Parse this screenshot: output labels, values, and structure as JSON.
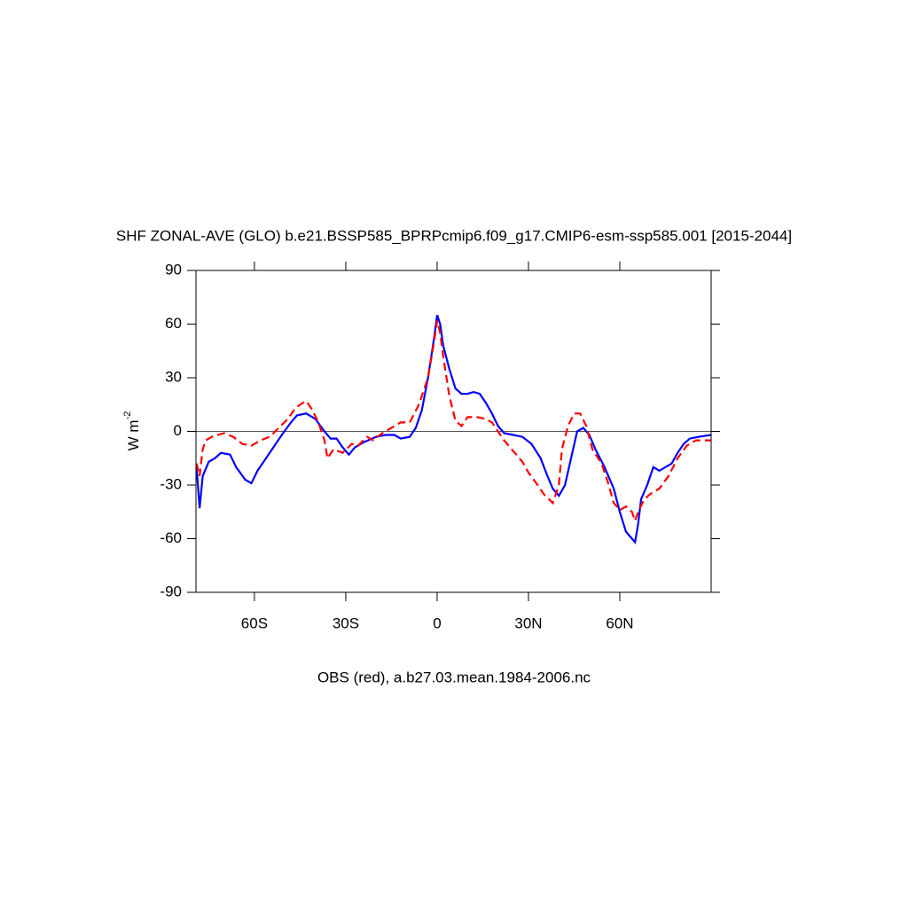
{
  "chart_data": {
    "type": "line",
    "title": "SHF ZONAL-AVE (GLO) b.e21.BSSP585_BPRPcmip6.f09_g17.CMIP6-esm-ssp585.001 [2015-2044]",
    "ylabel": "W m",
    "ylabel_superscript": "-2",
    "footer": "OBS (red), a.b27.03.mean.1984-2006.nc",
    "xlim": [
      -79.2,
      90
    ],
    "ylim": [
      -90,
      90
    ],
    "xticks": [
      {
        "value": -60,
        "label": "60S"
      },
      {
        "value": -30,
        "label": "30S"
      },
      0,
      {
        "value": 30,
        "label": "30N"
      },
      {
        "value": 60,
        "label": "60N"
      }
    ],
    "yticks": [
      -90,
      -60,
      -30,
      0,
      30,
      60,
      90
    ],
    "reference_line": 0,
    "series": [
      {
        "color": "#0000ff",
        "dash": false,
        "x": [
          -79,
          -78,
          -77,
          -75,
          -73,
          -71,
          -68,
          -66,
          -63,
          -61,
          -59,
          -55,
          -51,
          -48,
          -46,
          -43,
          -40,
          -37,
          -35,
          -33,
          -31,
          -29,
          -27,
          -24,
          -20,
          -17,
          -14,
          -12,
          -9,
          -7,
          -5,
          -3,
          -1,
          0,
          1,
          2,
          4,
          6,
          8,
          10,
          12,
          14,
          16,
          18,
          20,
          22,
          25,
          28,
          31,
          34,
          36,
          38,
          40,
          42,
          44,
          46,
          48,
          50,
          52,
          55,
          58,
          60,
          62,
          64,
          65,
          66,
          67,
          69,
          71,
          73,
          75,
          77,
          79,
          81,
          83,
          86,
          90
        ],
        "values": [
          -20,
          -43,
          -25,
          -17,
          -15,
          -12,
          -13,
          -20,
          -27,
          -29,
          -22,
          -12,
          -2,
          5,
          9,
          10,
          7,
          0,
          -4,
          -4,
          -9,
          -13,
          -9,
          -6,
          -3,
          -2,
          -2,
          -4,
          -3,
          2,
          12,
          30,
          52,
          65,
          60,
          48,
          35,
          24,
          21,
          21,
          22,
          21,
          16,
          10,
          3,
          -1,
          -2,
          -3,
          -7,
          -15,
          -24,
          -32,
          -36,
          -30,
          -15,
          0,
          2,
          -2,
          -10,
          -20,
          -32,
          -45,
          -56,
          -60,
          -62,
          -52,
          -38,
          -30,
          -20,
          -22,
          -20,
          -18,
          -12,
          -7,
          -4,
          -3,
          -2
        ]
      },
      {
        "color": "#ff0000",
        "dash": true,
        "x": [
          -79,
          -78,
          -77,
          -76,
          -74,
          -72,
          -70,
          -67,
          -64,
          -61,
          -58,
          -55,
          -52,
          -49,
          -47,
          -45,
          -43,
          -41,
          -39,
          -37,
          -36,
          -34,
          -31,
          -28,
          -26,
          -23,
          -21,
          -18,
          -15,
          -12,
          -9,
          -6,
          -3,
          -1,
          0,
          1,
          2,
          4,
          6,
          8,
          10,
          13,
          16,
          18,
          20,
          22,
          25,
          28,
          30,
          33,
          35,
          38,
          40,
          41,
          43,
          45,
          47,
          49,
          51,
          54,
          56,
          58,
          60,
          62,
          64,
          65,
          66,
          68,
          70,
          73,
          76,
          79,
          82,
          85,
          90
        ],
        "values": [
          -18,
          -25,
          -10,
          -5,
          -3,
          -2,
          -1,
          -3,
          -7,
          -8,
          -5,
          -3,
          2,
          7,
          12,
          15,
          17,
          12,
          5,
          -5,
          -15,
          -10,
          -12,
          -7,
          -8,
          -3,
          -5,
          -1,
          2,
          5,
          5,
          15,
          30,
          50,
          62,
          55,
          42,
          20,
          6,
          3,
          8,
          8,
          7,
          5,
          0,
          -5,
          -11,
          -17,
          -23,
          -30,
          -35,
          -40,
          -30,
          -10,
          3,
          10,
          10,
          3,
          -10,
          -18,
          -28,
          -40,
          -44,
          -42,
          -45,
          -50,
          -45,
          -38,
          -35,
          -32,
          -25,
          -15,
          -8,
          -5,
          -5
        ]
      }
    ]
  }
}
